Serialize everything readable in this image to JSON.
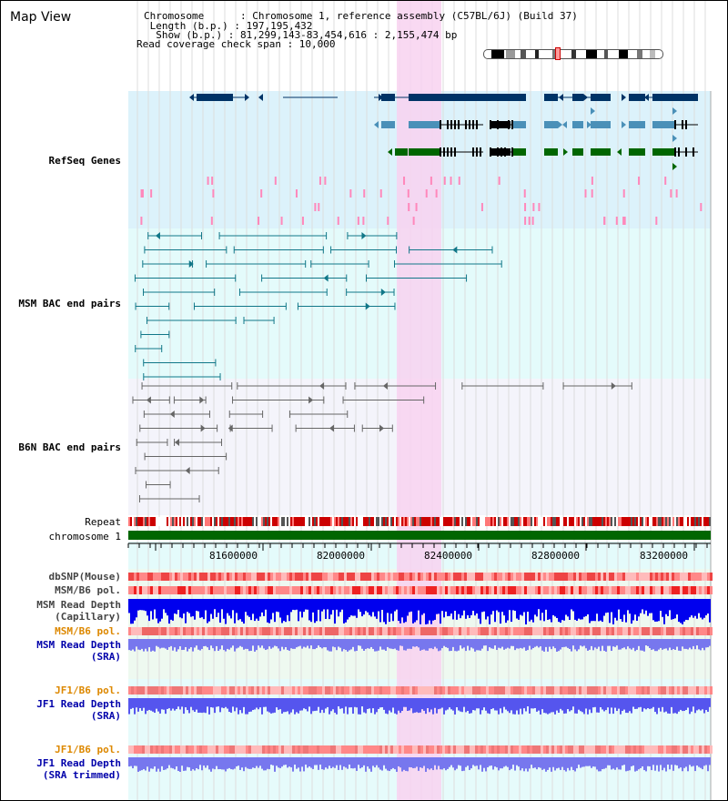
{
  "header": {
    "title": "Map View",
    "chromosome_line": "Chromosome      : Chromosome 1, reference assembly (C57BL/6J) (Build 37)",
    "length_line": " Length (b.p.) : 197,195,432",
    "show_line": "  Show (b.p.) : 81,299,143-83,454,616 : 2,155,474 bp",
    "coverage_line": "Read coverage check span : 10,000"
  },
  "tracks": {
    "refseq": {
      "label": "RefSeq Genes",
      "color": "#0000aa"
    },
    "msm_bac": {
      "label": "MSM BAC end pairs",
      "color": "#006677"
    },
    "b6n_bac": {
      "label": "B6N BAC end pairs",
      "color": "#555555"
    },
    "repeat": {
      "label": "Repeat"
    },
    "chromosome": {
      "label": "chromosome 1"
    },
    "dbsnp": {
      "label": "dbSNP(Mouse)"
    },
    "msm_b6_pol": {
      "label": "MSM/B6 pol."
    },
    "msm_read_depth_cap": {
      "label1": "MSM Read Depth",
      "label2": "(Capillary)"
    },
    "msm_b6_pol_sra": {
      "label": "MSM/B6 pol.",
      "color": "#dd8800"
    },
    "msm_read_depth_sra": {
      "label1": "MSM Read Depth",
      "label2": "(SRA)",
      "color": "#0000aa"
    },
    "jf1_b6_pol": {
      "label": "JF1/B6 pol.",
      "color": "#dd8800"
    },
    "jf1_read_depth_sra": {
      "label1": "JF1 Read Depth",
      "label2": "(SRA)",
      "color": "#0000aa"
    },
    "jf1_b6_pol_trim": {
      "label": "JF1/B6 pol.",
      "color": "#dd8800"
    },
    "jf1_read_depth_trim": {
      "label1": "JF1 Read Depth",
      "label2": "(SRA trimmed)",
      "color": "#0000aa"
    }
  },
  "axis": {
    "start_bp": 81299143,
    "end_bp": 83454616,
    "ticks": [
      "81600000",
      "82000000",
      "82400000",
      "82800000",
      "83200000"
    ]
  },
  "colors": {
    "refseq_bg": "#dcf2fb",
    "msm_bg": "#e4fbfb",
    "b6n_bg": "#f4f4fb",
    "highlight": "#f8d2f0",
    "gene_dark": "#003366",
    "gene_mid": "#4a90b8",
    "gene_green": "#006600",
    "chrom_green": "#006600",
    "depth_blue": "#0000ee",
    "depth_light": "#7777ee",
    "pol_red": "#ee3333"
  }
}
